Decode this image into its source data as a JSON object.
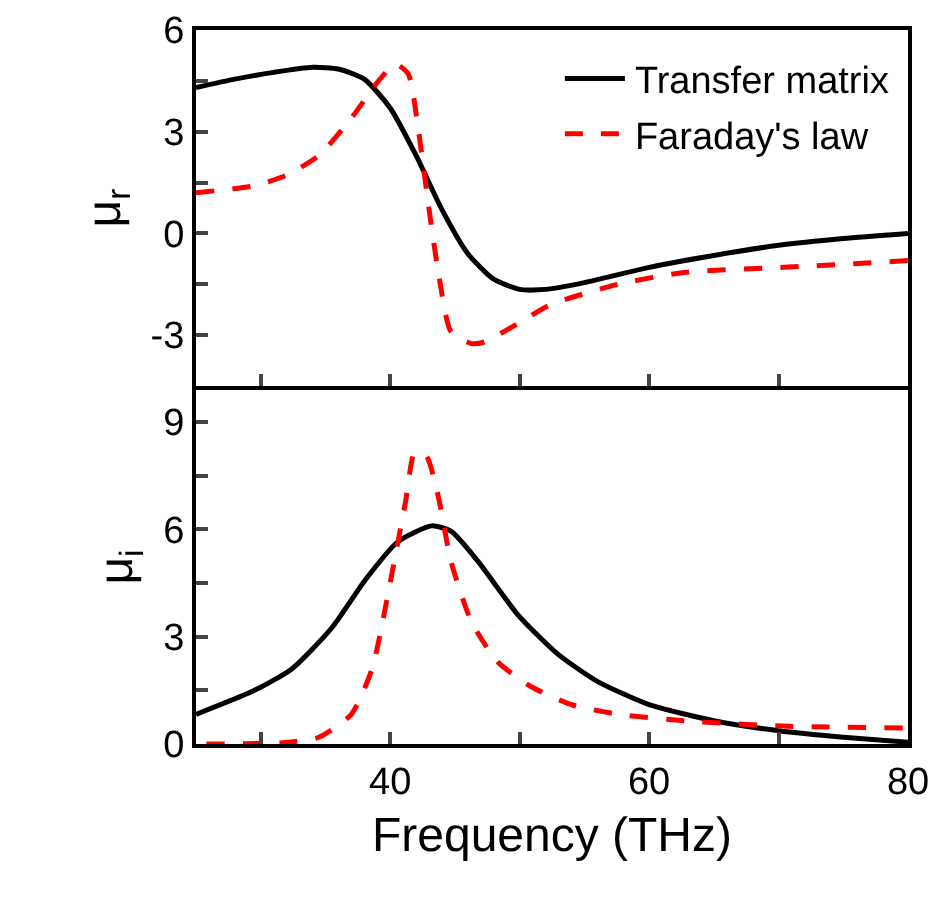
{
  "chart_data": [
    {
      "type": "line",
      "ylabel": "μ$_{r}$",
      "xlim": [
        25,
        80
      ],
      "xticks": [
        {
          "value": 30,
          "label": null
        },
        {
          "value": 40,
          "label": null
        },
        {
          "value": 50,
          "label": null
        },
        {
          "value": 60,
          "label": null
        },
        {
          "value": 70,
          "label": null
        }
      ],
      "ylim": [
        -4.5,
        6
      ],
      "yticks": [
        -3,
        {
          "value": -1.5,
          "label": null
        },
        0,
        {
          "value": 1.5,
          "label": null
        },
        3,
        {
          "value": 4.5,
          "label": null
        },
        6
      ],
      "tick_labels": "y",
      "legend": "top right",
      "grid": false,
      "series": [
        {
          "name": "Transfer matrix",
          "color": "#000000",
          "line_style": "solid",
          "x": [
            25,
            28,
            31,
            34,
            36,
            38,
            40,
            42,
            44,
            46,
            48,
            50,
            52,
            55,
            60,
            65,
            70,
            75,
            80
          ],
          "values": [
            4.3,
            4.55,
            4.75,
            4.9,
            4.85,
            4.55,
            3.7,
            2.3,
            0.7,
            -0.6,
            -1.35,
            -1.65,
            -1.65,
            -1.45,
            -1.0,
            -0.65,
            -0.35,
            -0.15,
            0
          ]
        },
        {
          "name": "Faraday's law",
          "color": "#ff0000",
          "line_style": "dashed",
          "x": [
            25,
            29.4,
            31.9,
            34.5,
            37,
            39.1,
            40.4,
            41.4,
            42.2,
            42.9,
            43.7,
            44.7,
            46.3,
            47.3,
            49.9,
            52.4,
            57.6,
            62.7,
            70.4,
            75.5,
            80
          ],
          "values": [
            1.2,
            1.4,
            1.7,
            2.3,
            3.4,
            4.5,
            5.0,
            4.7,
            3.0,
            1.0,
            -1.1,
            -2.9,
            -3.25,
            -3.2,
            -2.65,
            -2.1,
            -1.5,
            -1.15,
            -1.0,
            -0.9,
            -0.8
          ]
        }
      ]
    },
    {
      "type": "line",
      "xlabel": "Frequency (THz)",
      "ylabel": "μ$_{i}$",
      "xlim": [
        25,
        80
      ],
      "xticks": [
        {
          "value": 30,
          "label": null
        },
        40,
        {
          "value": 50,
          "label": null
        },
        60,
        {
          "value": 70,
          "label": null
        },
        80
      ],
      "ylim": [
        0,
        9.9
      ],
      "yticks": [
        0,
        {
          "value": 1.5,
          "label": null
        },
        3,
        {
          "value": 4.5,
          "label": null
        },
        6,
        {
          "value": 7.5,
          "label": null
        },
        9
      ],
      "legend": false,
      "grid": false,
      "series": [
        {
          "color": "#000000",
          "line_style": "solid",
          "x": [
            25,
            29.4,
            32.4,
            35.5,
            38.1,
            40.6,
            43.2,
            44.7,
            46.8,
            49.9,
            53,
            56,
            60,
            65,
            70,
            75,
            80
          ],
          "values": [
            0.83,
            1.48,
            2.1,
            3.25,
            4.6,
            5.66,
            6.1,
            5.95,
            5.1,
            3.6,
            2.5,
            1.75,
            1.1,
            0.65,
            0.37,
            0.19,
            0.05
          ]
        },
        {
          "color": "#ff0000",
          "line_style": "dashed",
          "x": [
            25.8,
            31.9,
            34.5,
            37,
            38.6,
            40.1,
            41.2,
            41.9,
            42.8,
            43.7,
            44.7,
            46.3,
            48.3,
            50.9,
            54,
            57.6,
            62.7,
            70.4,
            79.6
          ],
          "values": [
            0,
            0.04,
            0.19,
            0.83,
            2.1,
            4.7,
            6.8,
            8.15,
            8.05,
            6.95,
            5.1,
            3.4,
            2.3,
            1.6,
            1.1,
            0.83,
            0.65,
            0.5,
            0.45
          ]
        }
      ]
    }
  ]
}
